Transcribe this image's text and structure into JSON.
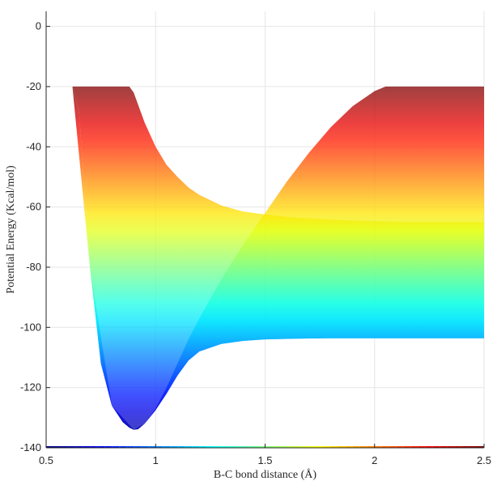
{
  "chart_data": {
    "type": "area",
    "title": "",
    "xlabel": "B-C bond distance (Å)",
    "ylabel": "Potential Energy (Kcal/mol)",
    "xlim": [
      0.5,
      2.5
    ],
    "ylim": [
      -140,
      5
    ],
    "x_ticks": [
      "0.5",
      "1",
      "1.5",
      "2",
      "2.5"
    ],
    "y_ticks": [
      "0",
      "-20",
      "-40",
      "-60",
      "-80",
      "-100",
      "-120",
      "-140"
    ],
    "grid": true,
    "colormap": "jet",
    "color_range": [
      -140,
      -20
    ],
    "surface": {
      "x": [
        0.62,
        0.65,
        0.7,
        0.75,
        0.8,
        0.85,
        0.88,
        0.9,
        0.92,
        0.95,
        1.0,
        1.05,
        1.1,
        1.15,
        1.2,
        1.3,
        1.4,
        1.5,
        1.6,
        1.7,
        1.8,
        1.9,
        2.0,
        2.05,
        2.1,
        2.2,
        2.3,
        2.4,
        2.5
      ],
      "upper": [
        -20,
        -20,
        -20,
        -20,
        -20,
        -20,
        -20,
        -22,
        -26,
        -32,
        -40,
        -46,
        -50,
        -53.5,
        -56,
        -59.5,
        -61.5,
        -62.5,
        -63.3,
        -63.8,
        -64.2,
        -64.5,
        -64.7,
        -64.8,
        -64.9,
        -65,
        -65,
        -65,
        -65
      ],
      "lower": [
        -20,
        -28,
        -80,
        -112,
        -126,
        -131.5,
        -133.3,
        -134,
        -133.8,
        -132,
        -127.5,
        -122,
        -116,
        -111,
        -108,
        -105.5,
        -104.5,
        -104,
        -103.8,
        -103.7,
        -103.6,
        -103.6,
        -103.6,
        -103.6,
        -103.6,
        -103.6,
        -103.6,
        -103.6,
        -103.6
      ]
    },
    "curve_rising": {
      "x": [
        0.62,
        0.7,
        0.8,
        0.9,
        0.95,
        1.0,
        1.05,
        1.1,
        1.15,
        1.2,
        1.3,
        1.4,
        1.5,
        1.6,
        1.7,
        1.8,
        1.9,
        2.0,
        2.05,
        2.1
      ],
      "y": [
        -20,
        -80,
        -126,
        -134,
        -132,
        -127,
        -120,
        -112,
        -104,
        -97,
        -84,
        -72.5,
        -62,
        -51.5,
        -42,
        -33.5,
        -26.5,
        -21.5,
        -20,
        -20
      ]
    }
  }
}
